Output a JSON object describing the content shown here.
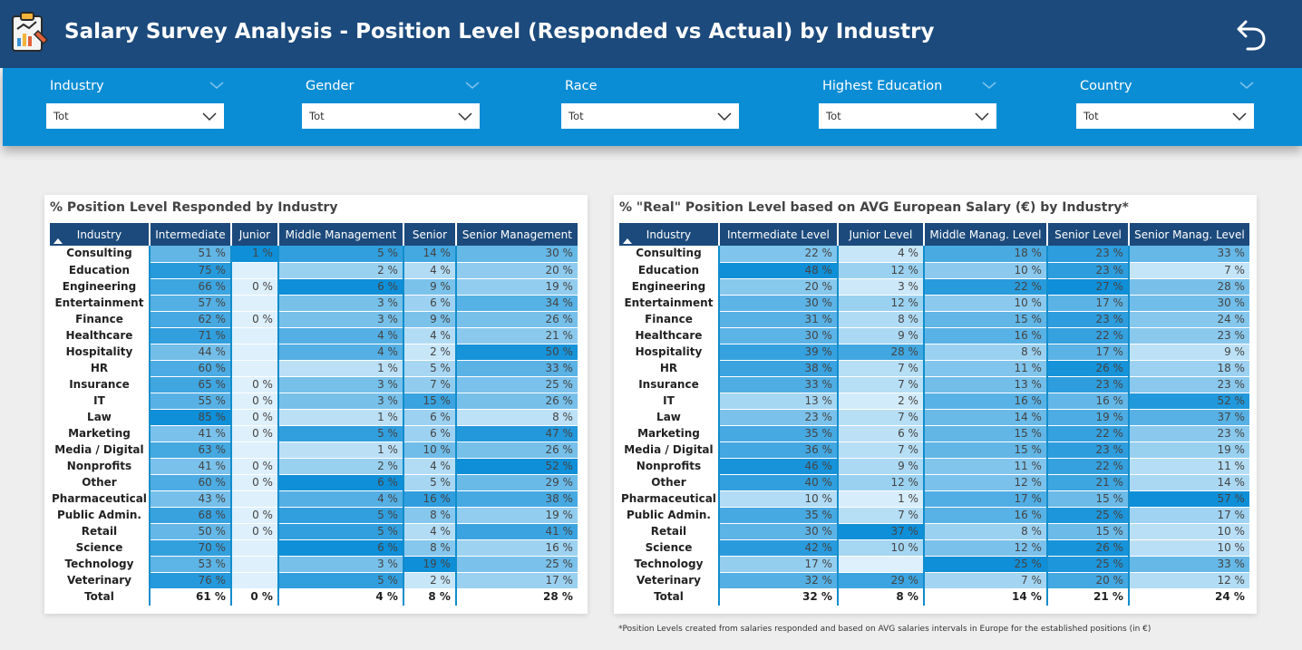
{
  "header": {
    "title": "Salary Survey Analysis - Position Level (Responded vs Actual) by Industry",
    "logo_icon": "clipboard-chart-icon",
    "back_icon": "back-arrow-icon"
  },
  "filters": [
    {
      "label": "Industry",
      "value": "Tot"
    },
    {
      "label": "Gender",
      "value": "Tot"
    },
    {
      "label": "Race",
      "value": "Tot"
    },
    {
      "label": "Highest Education",
      "value": "Tot"
    },
    {
      "label": "Country",
      "value": "Tot"
    }
  ],
  "colors": {
    "header_bg": "#1c4a7c",
    "filter_bg": "#0b8dd5",
    "scale_low": "#ddf0fc",
    "scale_high": "#0f8fd8"
  },
  "left_table": {
    "title": "% Position Level Responded by Industry",
    "columns": [
      "Industry",
      "Intermediate",
      "Junior",
      "Middle Management",
      "Senior",
      "Senior Management"
    ],
    "rows": [
      [
        "Consulting",
        "51 %",
        "1 %",
        "5 %",
        "14 %",
        "30 %"
      ],
      [
        "Education",
        "75 %",
        "",
        "2 %",
        "4 %",
        "20 %"
      ],
      [
        "Engineering",
        "66 %",
        "0 %",
        "6 %",
        "9 %",
        "19 %"
      ],
      [
        "Entertainment",
        "57 %",
        "",
        "3 %",
        "6 %",
        "34 %"
      ],
      [
        "Finance",
        "62 %",
        "0 %",
        "3 %",
        "9 %",
        "26 %"
      ],
      [
        "Healthcare",
        "71 %",
        "",
        "4 %",
        "4 %",
        "21 %"
      ],
      [
        "Hospitality",
        "44 %",
        "",
        "4 %",
        "2 %",
        "50 %"
      ],
      [
        "HR",
        "60 %",
        "",
        "1 %",
        "5 %",
        "33 %"
      ],
      [
        "Insurance",
        "65 %",
        "0 %",
        "3 %",
        "7 %",
        "25 %"
      ],
      [
        "IT",
        "55 %",
        "0 %",
        "3 %",
        "15 %",
        "26 %"
      ],
      [
        "Law",
        "85 %",
        "0 %",
        "1 %",
        "6 %",
        "8 %"
      ],
      [
        "Marketing",
        "41 %",
        "0 %",
        "5 %",
        "6 %",
        "47 %"
      ],
      [
        "Media / Digital",
        "63 %",
        "",
        "1 %",
        "10 %",
        "26 %"
      ],
      [
        "Nonprofits",
        "41 %",
        "0 %",
        "2 %",
        "4 %",
        "52 %"
      ],
      [
        "Other",
        "60 %",
        "0 %",
        "6 %",
        "5 %",
        "29 %"
      ],
      [
        "Pharmaceutical",
        "43 %",
        "",
        "4 %",
        "16 %",
        "38 %"
      ],
      [
        "Public Admin.",
        "68 %",
        "0 %",
        "5 %",
        "8 %",
        "19 %"
      ],
      [
        "Retail",
        "50 %",
        "0 %",
        "5 %",
        "4 %",
        "41 %"
      ],
      [
        "Science",
        "70 %",
        "",
        "6 %",
        "8 %",
        "16 %"
      ],
      [
        "Technology",
        "53 %",
        "",
        "3 %",
        "19 %",
        "25 %"
      ],
      [
        "Veterinary",
        "76 %",
        "",
        "5 %",
        "2 %",
        "17 %"
      ]
    ],
    "total": [
      "Total",
      "61 %",
      "0 %",
      "4 %",
      "8 %",
      "28 %"
    ]
  },
  "right_table": {
    "title": "% \"Real\" Position Level based on AVG European Salary (€) by Industry*",
    "columns": [
      "Industry",
      "Intermediate Level",
      "Junior Level",
      "Middle Manag. Level",
      "Senior Level",
      "Senior Manag. Level"
    ],
    "rows": [
      [
        "Consulting",
        "22 %",
        "4 %",
        "18 %",
        "23 %",
        "33 %"
      ],
      [
        "Education",
        "48 %",
        "12 %",
        "10 %",
        "23 %",
        "7 %"
      ],
      [
        "Engineering",
        "20 %",
        "3 %",
        "22 %",
        "27 %",
        "28 %"
      ],
      [
        "Entertainment",
        "30 %",
        "12 %",
        "10 %",
        "17 %",
        "30 %"
      ],
      [
        "Finance",
        "31 %",
        "8 %",
        "15 %",
        "23 %",
        "24 %"
      ],
      [
        "Healthcare",
        "30 %",
        "9 %",
        "16 %",
        "22 %",
        "23 %"
      ],
      [
        "Hospitality",
        "39 %",
        "28 %",
        "8 %",
        "17 %",
        "9 %"
      ],
      [
        "HR",
        "38 %",
        "7 %",
        "11 %",
        "26 %",
        "18 %"
      ],
      [
        "Insurance",
        "33 %",
        "7 %",
        "13 %",
        "23 %",
        "23 %"
      ],
      [
        "IT",
        "13 %",
        "2 %",
        "16 %",
        "16 %",
        "52 %"
      ],
      [
        "Law",
        "23 %",
        "7 %",
        "14 %",
        "19 %",
        "37 %"
      ],
      [
        "Marketing",
        "35 %",
        "6 %",
        "15 %",
        "22 %",
        "23 %"
      ],
      [
        "Media / Digital",
        "36 %",
        "7 %",
        "15 %",
        "23 %",
        "19 %"
      ],
      [
        "Nonprofits",
        "46 %",
        "9 %",
        "11 %",
        "22 %",
        "11 %"
      ],
      [
        "Other",
        "40 %",
        "12 %",
        "12 %",
        "21 %",
        "14 %"
      ],
      [
        "Pharmaceutical",
        "10 %",
        "1 %",
        "17 %",
        "15 %",
        "57 %"
      ],
      [
        "Public Admin.",
        "35 %",
        "7 %",
        "16 %",
        "25 %",
        "17 %"
      ],
      [
        "Retail",
        "30 %",
        "37 %",
        "8 %",
        "15 %",
        "10 %"
      ],
      [
        "Science",
        "42 %",
        "10 %",
        "12 %",
        "26 %",
        "10 %"
      ],
      [
        "Technology",
        "17 %",
        "",
        "25 %",
        "25 %",
        "33 %"
      ],
      [
        "Veterinary",
        "32 %",
        "29 %",
        "7 %",
        "20 %",
        "12 %"
      ]
    ],
    "total": [
      "Total",
      "32 %",
      "8 %",
      "14 %",
      "21 %",
      "24 %"
    ]
  },
  "footnote": "*Position Levels created from salaries responded and based on AVG salaries intervals in Europe for the established positions (in €)"
}
